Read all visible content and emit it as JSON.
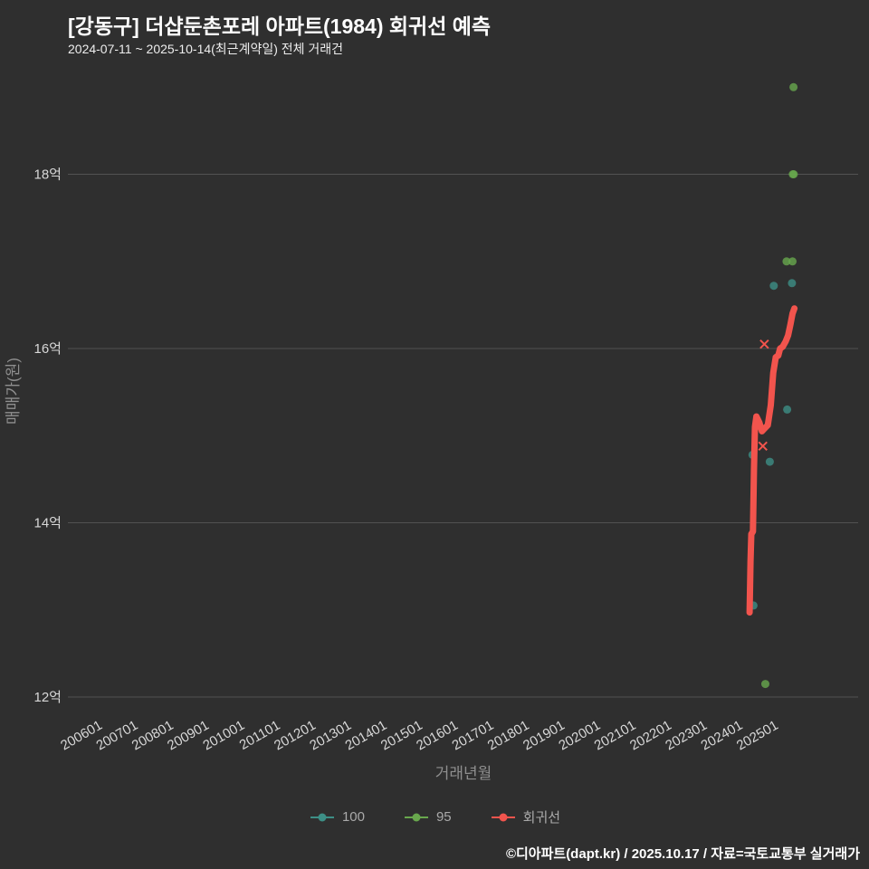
{
  "chart_data": {
    "type": "scatter",
    "title": "[강동구] 더샵둔촌포레 아파트(1984) 회귀선 예측",
    "subtitle": "2024-07-11 ~ 2025-10-14(최근계약일) 전체 거래건",
    "xlabel": "거래년월",
    "ylabel": "매매가(원)",
    "x_ticks": [
      "200601",
      "200701",
      "200801",
      "200901",
      "201001",
      "201101",
      "201201",
      "201301",
      "201401",
      "201501",
      "201601",
      "201701",
      "201801",
      "201901",
      "202001",
      "202101",
      "202201",
      "202301",
      "202401",
      "202501"
    ],
    "y_ticks": [
      {
        "label": "12억",
        "value": 12
      },
      {
        "label": "14억",
        "value": 14
      },
      {
        "label": "16억",
        "value": 16
      },
      {
        "label": "18억",
        "value": 18
      }
    ],
    "ylim": [
      11.8,
      19.4
    ],
    "grid": true,
    "legend_position": "bottom",
    "colors": {
      "s100": "#3d8f86",
      "s95": "#68a74d",
      "regression": "#f2544d"
    },
    "series": [
      {
        "name": "100",
        "kind": "scatter",
        "color_key": "s100",
        "points": [
          [
            "2025-03-15",
            16.72
          ],
          [
            "2025-09-20",
            16.75
          ],
          [
            "2025-08-01",
            15.3
          ],
          [
            "2024-08-10",
            14.78
          ],
          [
            "2025-02-05",
            14.7
          ],
          [
            "2024-08-20",
            13.05
          ]
        ]
      },
      {
        "name": "95",
        "kind": "scatter",
        "color_key": "s95",
        "points": [
          [
            "2025-10-05",
            19.0
          ],
          [
            "2025-09-28",
            18.0
          ],
          [
            "2025-10-08",
            18.0
          ],
          [
            "2025-07-25",
            17.0
          ],
          [
            "2025-09-25",
            17.0
          ],
          [
            "2024-12-20",
            12.15
          ]
        ]
      },
      {
        "name": "회귀선",
        "kind": "line",
        "color_key": "regression",
        "points": [
          [
            "2024-07-11",
            12.97
          ],
          [
            "2024-07-20",
            13.55
          ],
          [
            "2024-07-28",
            13.87
          ],
          [
            "2024-08-15",
            13.9
          ],
          [
            "2024-08-25",
            14.6
          ],
          [
            "2024-09-05",
            15.1
          ],
          [
            "2024-09-20",
            15.22
          ],
          [
            "2024-10-20",
            15.15
          ],
          [
            "2024-11-15",
            15.05
          ],
          [
            "2024-12-10",
            15.08
          ],
          [
            "2025-01-15",
            15.12
          ],
          [
            "2025-02-15",
            15.35
          ],
          [
            "2025-03-10",
            15.72
          ],
          [
            "2025-04-05",
            15.9
          ],
          [
            "2025-05-01",
            15.92
          ],
          [
            "2025-05-20",
            16.0
          ],
          [
            "2025-06-15",
            16.02
          ],
          [
            "2025-07-15",
            16.08
          ],
          [
            "2025-08-10",
            16.15
          ],
          [
            "2025-09-05",
            16.28
          ],
          [
            "2025-09-25",
            16.4
          ],
          [
            "2025-10-14",
            16.46
          ]
        ]
      },
      {
        "name": "회귀선-x-markers",
        "kind": "x-marker",
        "color_key": "regression",
        "points": [
          [
            "2024-12-10",
            16.05
          ],
          [
            "2024-11-25",
            14.88
          ]
        ]
      }
    ],
    "legend": [
      {
        "label": "100",
        "color_key": "s100"
      },
      {
        "label": "95",
        "color_key": "s95"
      },
      {
        "label": "회귀선",
        "color_key": "regression"
      }
    ]
  },
  "footer": {
    "text": "©디아파트(dapt.kr) / 2025.10.17 / 자료=국토교통부 실거래가"
  }
}
